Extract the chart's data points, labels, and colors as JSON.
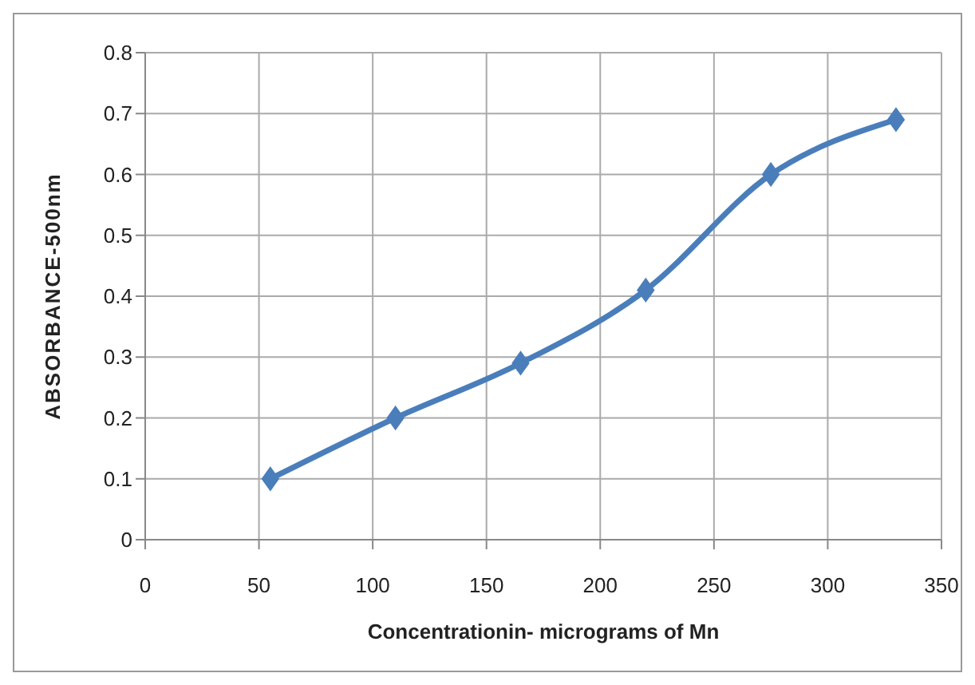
{
  "chart_data": {
    "type": "line",
    "xlabel": "Concentrationin- micrograms of Mn",
    "ylabel": "ABSORBANCE-500nm",
    "x": [
      55,
      110,
      165,
      220,
      275,
      330
    ],
    "series": [
      {
        "color": "#4a7ebb",
        "values": [
          0.1,
          0.2,
          0.29,
          0.41,
          0.6,
          0.69
        ]
      }
    ],
    "xlim": [
      0,
      350
    ],
    "xticks": [
      0,
      50,
      100,
      150,
      200,
      250,
      300,
      350
    ],
    "ylim": [
      0,
      0.8
    ],
    "yticks": [
      0,
      0.1,
      0.2,
      0.3,
      0.4,
      0.5,
      0.6,
      0.7,
      0.8
    ],
    "grid": true,
    "marker": "diamond",
    "line_style": "solid"
  }
}
